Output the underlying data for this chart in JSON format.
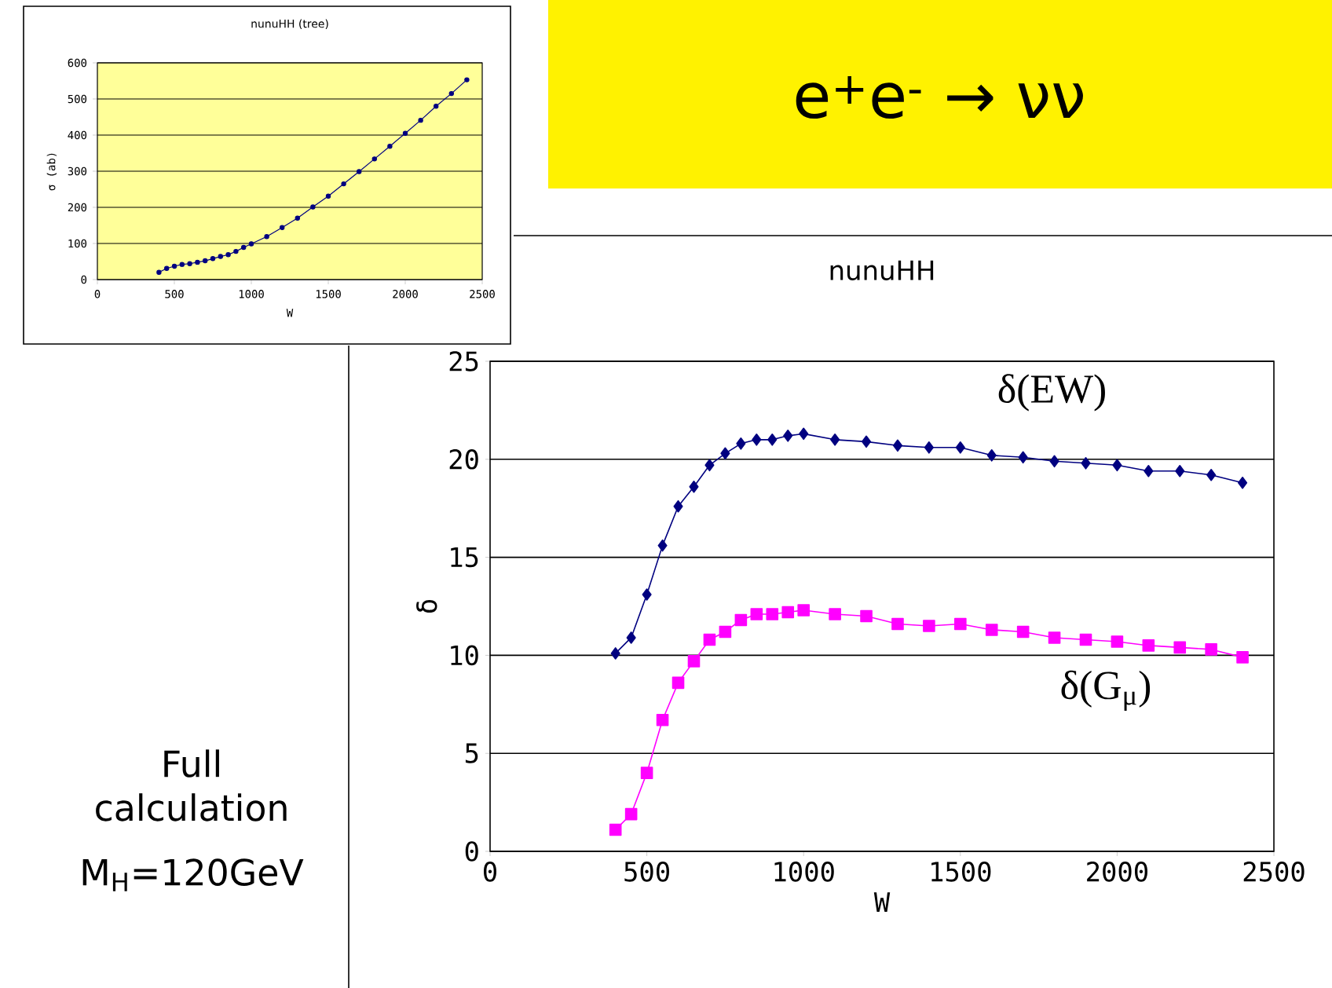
{
  "chart_data": [
    {
      "type": "line",
      "title": "nunuHH (tree)",
      "xlabel": "W",
      "ylabel": "σ (ab)",
      "x": [
        400,
        450,
        500,
        550,
        600,
        650,
        700,
        750,
        800,
        850,
        900,
        950,
        1000,
        1100,
        1200,
        1300,
        1400,
        1500,
        1600,
        1700,
        1800,
        1900,
        2000,
        2100,
        2200,
        2300,
        2400
      ],
      "series": [
        {
          "color": "#000080",
          "values": [
            20,
            31,
            37,
            42,
            44,
            48,
            52,
            58,
            64,
            69,
            78,
            89,
            99,
            119,
            144,
            170,
            201,
            231,
            265,
            299,
            334,
            369,
            405,
            441,
            480,
            515,
            553
          ]
        }
      ],
      "xlim": [
        0,
        2500
      ],
      "xticks": [
        0,
        500,
        1000,
        1500,
        2000,
        2500
      ],
      "ylim": [
        0,
        600
      ],
      "yticks": [
        0,
        100,
        200,
        300,
        400,
        500,
        600
      ],
      "grid": "y",
      "marker": "circle",
      "line_style": "solid"
    },
    {
      "type": "line",
      "title": "nunuHH",
      "xlabel": "W",
      "ylabel": "δ",
      "x": [
        400,
        450,
        500,
        550,
        600,
        650,
        700,
        750,
        800,
        850,
        900,
        950,
        1000,
        1100,
        1200,
        1300,
        1400,
        1500,
        1600,
        1700,
        1800,
        1900,
        2000,
        2100,
        2200,
        2300,
        2400
      ],
      "series": [
        {
          "name": "δ(EW)",
          "color": "#000080",
          "marker": "diamond",
          "values": [
            10.1,
            10.9,
            13.1,
            15.6,
            17.6,
            18.6,
            19.7,
            20.3,
            20.8,
            21.0,
            21.0,
            21.2,
            21.3,
            21.0,
            20.9,
            20.7,
            20.6,
            20.6,
            20.2,
            20.1,
            19.9,
            19.8,
            19.7,
            19.4,
            19.4,
            19.2,
            18.8
          ]
        },
        {
          "name": "δ(G$_{μ}$)",
          "color": "#ff00ff",
          "marker": "square",
          "values": [
            1.1,
            1.9,
            4.0,
            6.7,
            8.6,
            9.7,
            10.8,
            11.2,
            11.8,
            12.1,
            12.1,
            12.2,
            12.3,
            12.1,
            12.0,
            11.6,
            11.5,
            11.6,
            11.3,
            11.2,
            10.9,
            10.8,
            10.7,
            10.5,
            10.4,
            10.3,
            9.9
          ]
        }
      ],
      "xlim": [
        0,
        2500
      ],
      "xticks": [
        0,
        500,
        1000,
        1500,
        2000,
        2500
      ],
      "ylim": [
        0,
        25
      ],
      "yticks": [
        0,
        5,
        10,
        15,
        20,
        25
      ],
      "grid": "y",
      "line_style": "solid",
      "annotations": [
        "e$^{+}$e$^{-}$ → νν",
        "Full calculation",
        "M$_{H}$=120GeV"
      ]
    }
  ]
}
